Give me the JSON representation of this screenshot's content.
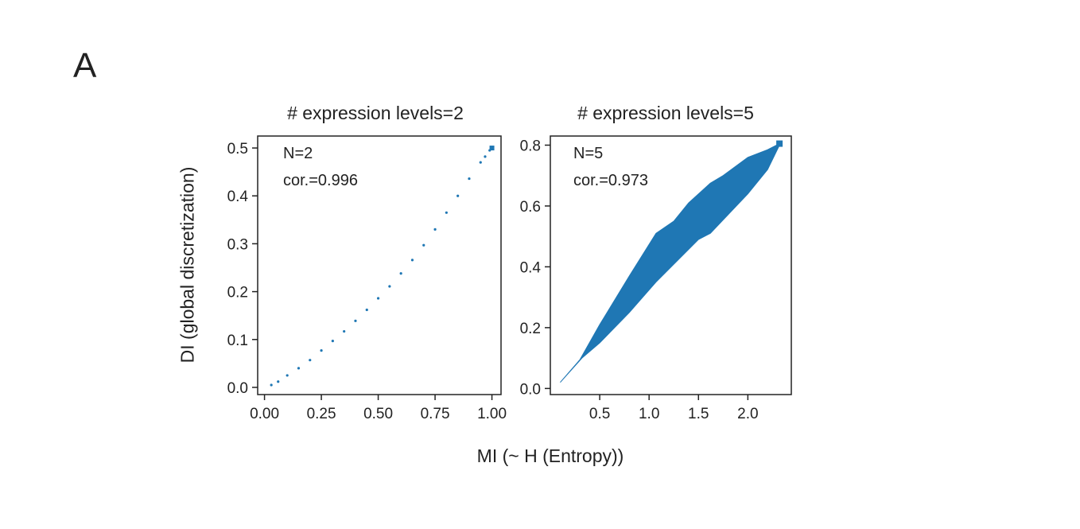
{
  "figure": {
    "panel_letter": "A",
    "shared_ylabel": "DI (global discretization)",
    "shared_xlabel": "MI (~ H (Entropy))"
  },
  "colors": {
    "series": "#1f77b4",
    "axis": "#222222"
  },
  "chart_data": [
    {
      "type": "scatter",
      "title": "# expression levels=2",
      "annotations": [
        "N=2",
        "cor.=0.996"
      ],
      "xlim": [
        -0.03,
        1.04
      ],
      "ylim": [
        -0.015,
        0.525
      ],
      "xticks": [
        0.0,
        0.25,
        0.5,
        0.75,
        1.0
      ],
      "xtick_labels": [
        "0.00",
        "0.25",
        "0.50",
        "0.75",
        "1.00"
      ],
      "yticks": [
        0.0,
        0.1,
        0.2,
        0.3,
        0.4,
        0.5
      ],
      "ytick_labels": [
        "0.0",
        "0.1",
        "0.2",
        "0.3",
        "0.4",
        "0.5"
      ],
      "points": [
        [
          0.03,
          0.005
        ],
        [
          0.06,
          0.012
        ],
        [
          0.1,
          0.025
        ],
        [
          0.15,
          0.04
        ],
        [
          0.2,
          0.057
        ],
        [
          0.25,
          0.077
        ],
        [
          0.3,
          0.097
        ],
        [
          0.35,
          0.117
        ],
        [
          0.4,
          0.139
        ],
        [
          0.45,
          0.162
        ],
        [
          0.5,
          0.186
        ],
        [
          0.55,
          0.211
        ],
        [
          0.6,
          0.238
        ],
        [
          0.65,
          0.266
        ],
        [
          0.7,
          0.297
        ],
        [
          0.75,
          0.33
        ],
        [
          0.8,
          0.365
        ],
        [
          0.85,
          0.4
        ],
        [
          0.9,
          0.436
        ],
        [
          0.95,
          0.47
        ],
        [
          0.97,
          0.482
        ],
        [
          0.99,
          0.495
        ],
        [
          1.0,
          0.5
        ]
      ]
    },
    {
      "type": "scatter",
      "title": "# expression levels=5",
      "annotations": [
        "N=5",
        "cor.=0.973"
      ],
      "xlim": [
        0.0,
        2.44
      ],
      "ylim": [
        -0.02,
        0.83
      ],
      "xticks": [
        0.5,
        1.0,
        1.5,
        2.0
      ],
      "xtick_labels": [
        "0.5",
        "1.0",
        "1.5",
        "2.0"
      ],
      "yticks": [
        0.0,
        0.2,
        0.4,
        0.6,
        0.8
      ],
      "ytick_labels": [
        "0.0",
        "0.2",
        "0.4",
        "0.6",
        "0.8"
      ],
      "upper_envelope": [
        [
          0.1,
          0.02
        ],
        [
          0.3,
          0.095
        ],
        [
          0.5,
          0.21
        ],
        [
          0.8,
          0.37
        ],
        [
          1.07,
          0.51
        ],
        [
          1.25,
          0.55
        ],
        [
          1.4,
          0.61
        ],
        [
          1.62,
          0.675
        ],
        [
          1.75,
          0.7
        ],
        [
          2.0,
          0.76
        ],
        [
          2.2,
          0.785
        ],
        [
          2.32,
          0.805
        ]
      ],
      "lower_envelope": [
        [
          0.32,
          0.1
        ],
        [
          0.5,
          0.15
        ],
        [
          0.8,
          0.25
        ],
        [
          1.07,
          0.35
        ],
        [
          1.5,
          0.49
        ],
        [
          1.62,
          0.51
        ],
        [
          2.0,
          0.64
        ],
        [
          2.2,
          0.72
        ],
        [
          2.32,
          0.8
        ]
      ]
    }
  ]
}
